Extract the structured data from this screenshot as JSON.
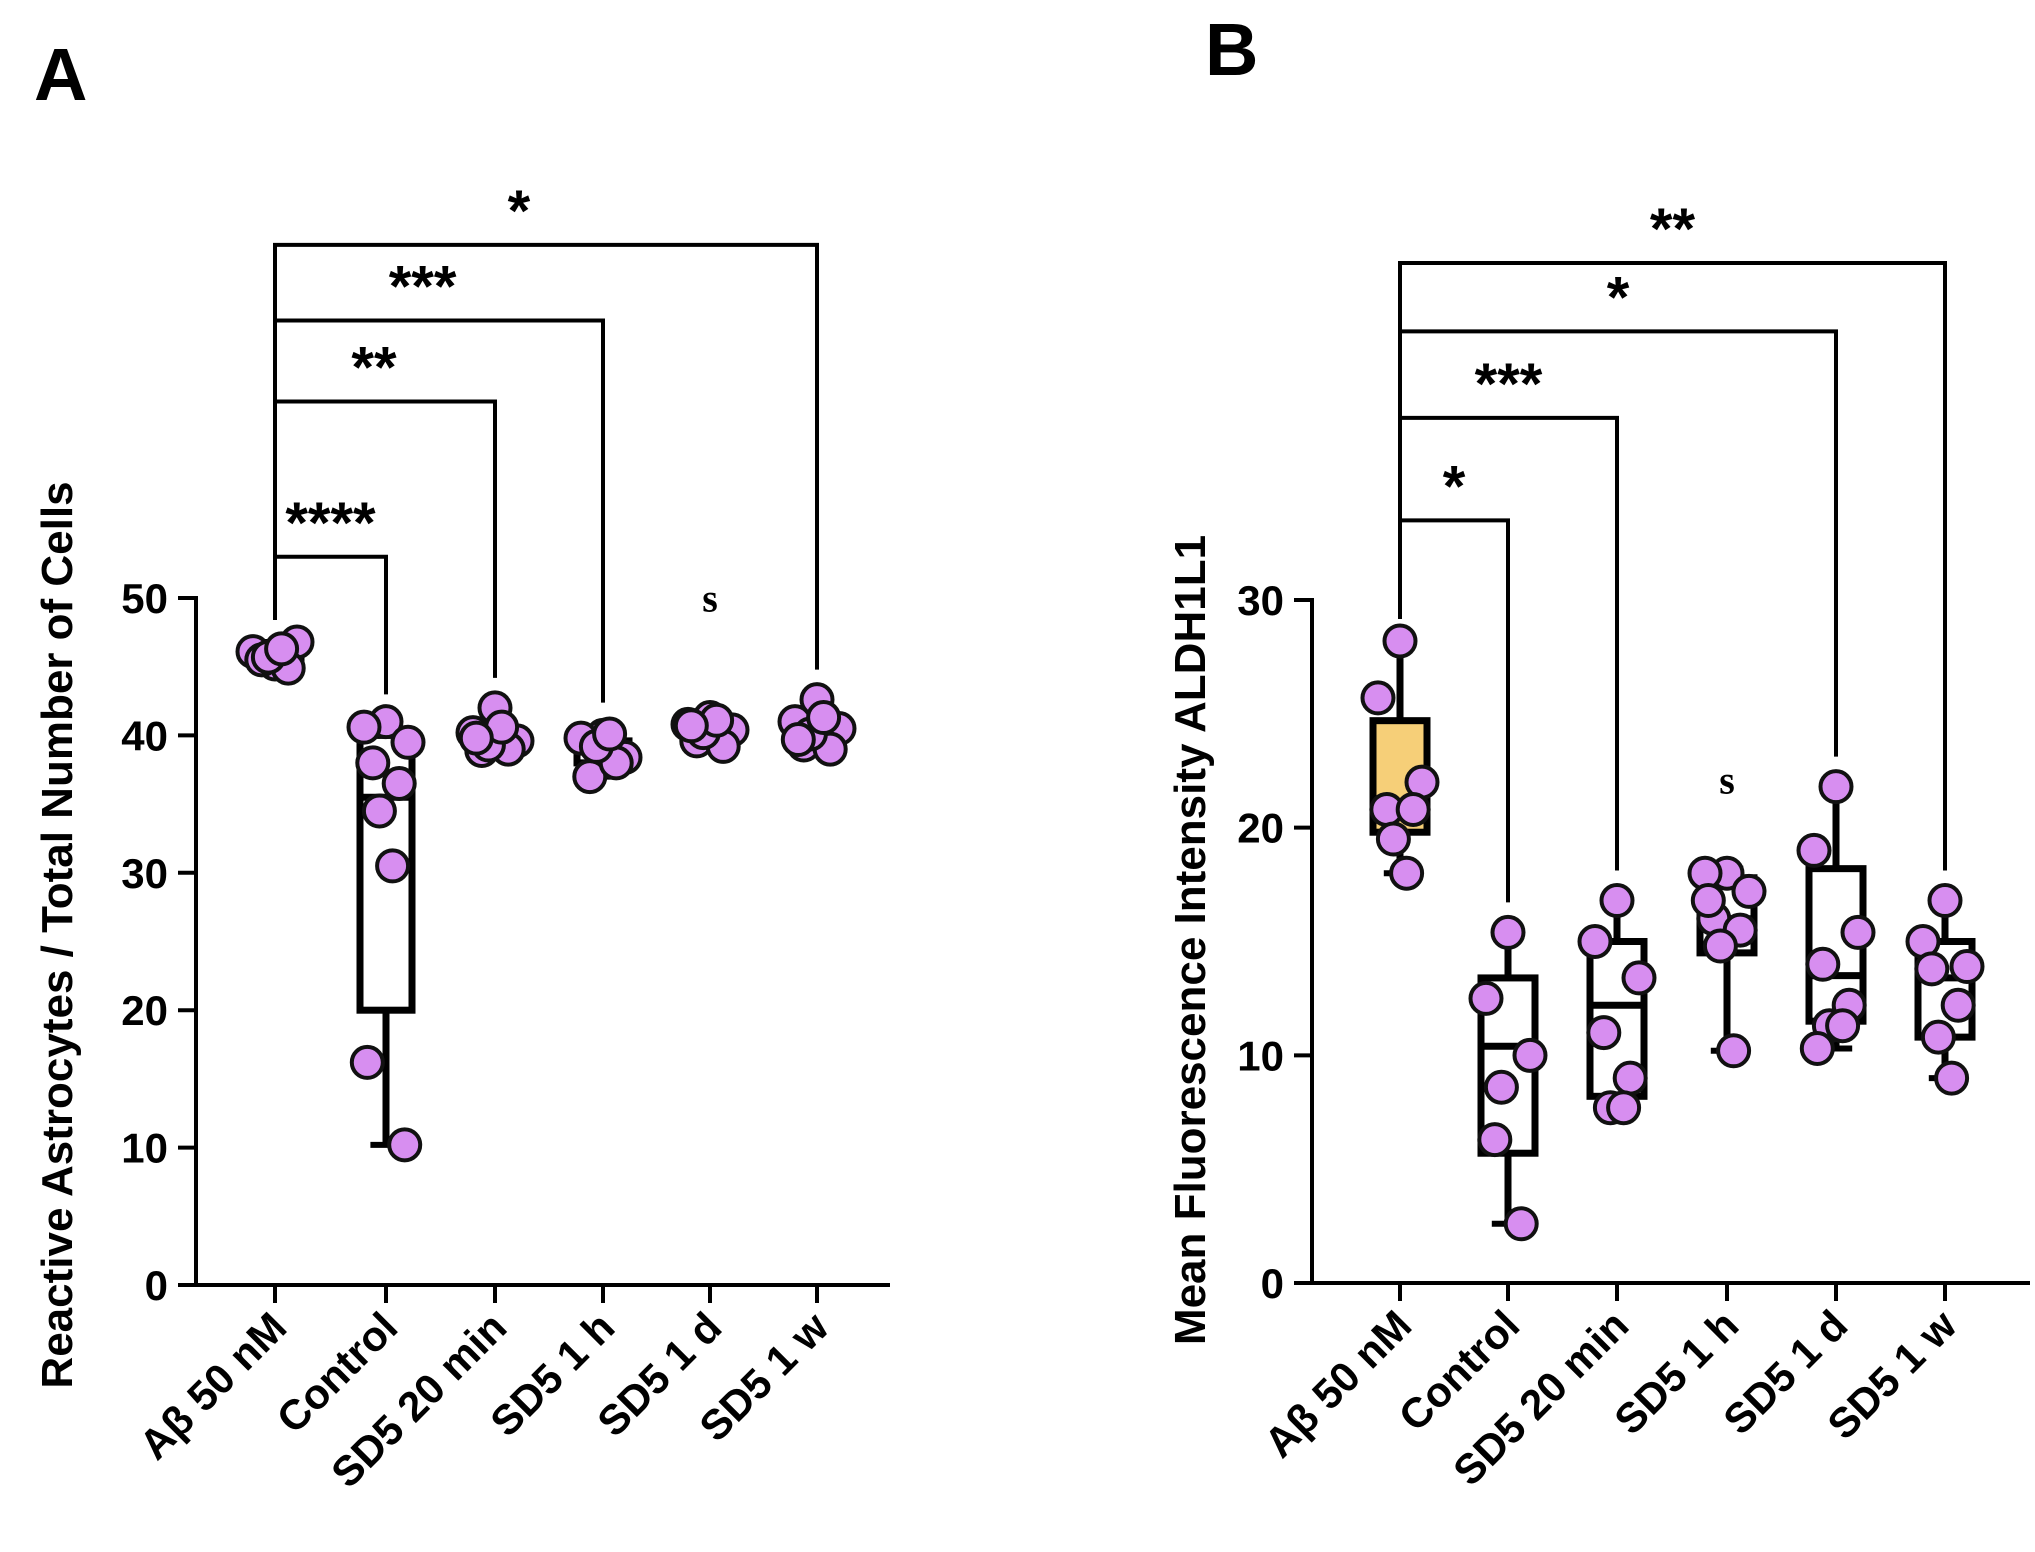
{
  "chart_data": [
    {
      "panel": "A",
      "type": "box",
      "title": "",
      "xlabel": "",
      "ylabel": "Reactive Astrocytes / Total Number of Cells",
      "ylim": [
        0,
        50
      ],
      "yticks": [
        0,
        10,
        20,
        30,
        40,
        50
      ],
      "categories": [
        "Aβ 50 nM",
        "Control",
        "SD5 20 min",
        "SD5 1 h",
        "SD5 1 d",
        "SD5 1 w"
      ],
      "boxes": [
        {
          "min": 44.8,
          "q1": 45.2,
          "median": 45.8,
          "q3": 46.3,
          "max": 46.8,
          "fill": "#ffffff"
        },
        {
          "min": 10.2,
          "q1": 20.0,
          "median": 35.5,
          "q3": 40.0,
          "max": 40.8,
          "fill": "#ffffff"
        },
        {
          "min": 38.8,
          "q1": 39.0,
          "median": 39.8,
          "q3": 40.5,
          "max": 42.0,
          "fill": "#ffffff"
        },
        {
          "min": 37.0,
          "q1": 38.0,
          "median": 38.9,
          "q3": 39.6,
          "max": 40.2,
          "fill": "#ffffff"
        },
        {
          "min": 39.0,
          "q1": 39.6,
          "median": 40.0,
          "q3": 40.8,
          "max": 41.5,
          "fill": "#ffffff"
        },
        {
          "min": 39.0,
          "q1": 39.5,
          "median": 40.3,
          "q3": 41.3,
          "max": 42.6,
          "fill": "#ffffff"
        }
      ],
      "points": [
        [
          45.2,
          46.1,
          46.8,
          45.5,
          44.9,
          45.7,
          46.3
        ],
        [
          41.0,
          40.6,
          39.5,
          38.0,
          36.5,
          34.5,
          30.5,
          16.2,
          10.2
        ],
        [
          42.0,
          40.2,
          39.6,
          38.9,
          39.0,
          39.3,
          40.6,
          39.8
        ],
        [
          40.0,
          39.8,
          38.4,
          37.0,
          38.0,
          39.2,
          40.1
        ],
        [
          41.3,
          40.8,
          40.4,
          39.6,
          39.2,
          40.2,
          41.1,
          40.7
        ],
        [
          42.6,
          41.0,
          40.5,
          39.3,
          39.0,
          40.1,
          41.3,
          39.7
        ]
      ],
      "comparisons": [
        {
          "from": "Aβ 50 nM",
          "to": "Control",
          "label": "****",
          "y": 53
        },
        {
          "from": "Aβ 50 nM",
          "to": "SD5 20 min",
          "label": "**",
          "y": 64.3
        },
        {
          "from": "Aβ 50 nM",
          "to": "SD5 1 h",
          "label": "***",
          "y": 70.2
        },
        {
          "from": "Aβ 50 nM",
          "to": "SD5 1 w",
          "label": "*",
          "y": 75.7
        }
      ],
      "annotation": {
        "text": "s",
        "category": "SD5 1 d",
        "y": 49
      }
    },
    {
      "panel": "B",
      "type": "box",
      "title": "",
      "xlabel": "",
      "ylabel": "Mean Fluorescence Intensity ALDH1L1",
      "ylim": [
        0,
        30
      ],
      "yticks": [
        0,
        10,
        20,
        30
      ],
      "categories": [
        "Aβ 50 nM",
        "Control",
        "SD5 20 min",
        "SD5 1 h",
        "SD5 1 d",
        "SD5 1 w"
      ],
      "boxes": [
        {
          "min": 18.0,
          "q1": 19.8,
          "median": 21.0,
          "q3": 24.7,
          "max": 28.2,
          "fill": "#f6cf78"
        },
        {
          "min": 2.6,
          "q1": 5.7,
          "median": 10.4,
          "q3": 13.4,
          "max": 15.4,
          "fill": "#ffffff"
        },
        {
          "min": 7.7,
          "q1": 8.2,
          "median": 12.2,
          "q3": 15.0,
          "max": 16.8,
          "fill": "#ffffff"
        },
        {
          "min": 10.2,
          "q1": 14.5,
          "median": 16.0,
          "q3": 17.8,
          "max": 18.2,
          "fill": "#ffffff"
        },
        {
          "min": 10.3,
          "q1": 11.5,
          "median": 13.5,
          "q3": 18.2,
          "max": 21.8,
          "fill": "#ffffff"
        },
        {
          "min": 9.0,
          "q1": 10.8,
          "median": 13.4,
          "q3": 15.0,
          "max": 16.8,
          "fill": "#ffffff"
        }
      ],
      "points": [
        [
          28.2,
          25.7,
          22.0,
          20.8,
          20.8,
          19.5,
          18.0
        ],
        [
          15.4,
          12.5,
          10.0,
          6.3,
          2.6,
          8.6
        ],
        [
          16.8,
          15.0,
          13.4,
          11.0,
          9.0,
          7.7,
          7.7
        ],
        [
          18.0,
          18.0,
          17.2,
          16.0,
          15.5,
          14.8,
          10.2,
          16.8
        ],
        [
          21.8,
          19.0,
          15.4,
          14.0,
          12.2,
          11.3,
          11.3,
          10.3
        ],
        [
          16.8,
          15.0,
          13.9,
          13.8,
          12.2,
          10.8,
          9.0
        ]
      ],
      "comparisons": [
        {
          "from": "Aβ 50 nM",
          "to": "Control",
          "label": "*",
          "y": 33.5
        },
        {
          "from": "Aβ 50 nM",
          "to": "SD5 20 min",
          "label": "***",
          "y": 38.0
        },
        {
          "from": "Aβ 50 nM",
          "to": "SD5 1 d",
          "label": "*",
          "y": 41.8
        },
        {
          "from": "Aβ 50 nM",
          "to": "SD5 1 w",
          "label": "**",
          "y": 44.8
        }
      ],
      "annotation": {
        "text": "s",
        "category": "SD5 1 h",
        "y": 21.5
      }
    }
  ],
  "point_color": "#d78ef0",
  "point_stroke": "#111111"
}
